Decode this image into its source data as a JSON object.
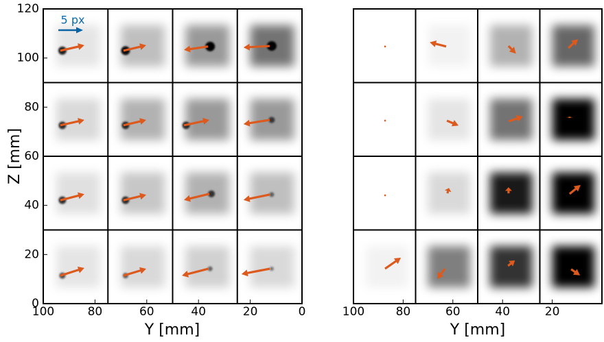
{
  "chart_data": [
    {
      "type": "quiver",
      "xlabel": "Y [mm]",
      "ylabel": "Z [mm]",
      "annotation": "5 px",
      "xlim": [
        100,
        0
      ],
      "ylim": [
        0,
        120
      ],
      "xticks": [
        100,
        80,
        60,
        40,
        20,
        0
      ],
      "yticks": [
        0,
        20,
        40,
        60,
        80,
        100,
        120
      ],
      "color": "#dc5a1e",
      "x": [
        93.4,
        69.0,
        36.3,
        12.5,
        93.4,
        69.0,
        45.6,
        12.5,
        93.4,
        69.0,
        35.8,
        12.5,
        93.4,
        69.0,
        36.3,
        12.5
      ],
      "y": [
        103.0,
        103.0,
        104.7,
        104.9,
        72.6,
        72.6,
        72.6,
        74.8,
        42.1,
        42.1,
        44.7,
        44.4,
        11.4,
        11.4,
        14.2,
        14.2
      ],
      "u": [
        -9.3,
        -8.8,
        9.3,
        10.1,
        -9.3,
        -8.8,
        -9.8,
        10.1,
        -9.3,
        -8.8,
        9.8,
        10.1,
        -9.3,
        -8.8,
        10.1,
        10.9
      ],
      "v": [
        2.2,
        2.2,
        -1.4,
        -0.6,
        2.2,
        2.2,
        2.2,
        -1.7,
        2.5,
        2.2,
        -2.5,
        -2.2,
        3.1,
        2.8,
        -2.8,
        -2.2
      ],
      "density": [
        [
          0.1,
          0.25,
          0.4,
          0.55
        ],
        [
          0.15,
          0.3,
          0.4,
          0.4
        ],
        [
          0.12,
          0.22,
          0.3,
          0.25
        ],
        [
          0.1,
          0.15,
          0.18,
          0.15
        ]
      ],
      "spots": [
        [
          0.8,
          0.9,
          1,
          1
        ],
        [
          0.7,
          0.7,
          0.7,
          0.5
        ],
        [
          0.7,
          0.7,
          0.6,
          0.3
        ],
        [
          0.5,
          0.4,
          0.3,
          0.2
        ]
      ]
    },
    {
      "type": "quiver",
      "xlabel": "Y [mm]",
      "xlim": [
        100,
        0
      ],
      "ylim": [
        0,
        120
      ],
      "xticks": [
        100,
        80,
        60,
        40,
        20
      ],
      "color": "#dc5a1e",
      "x": [
        87.3,
        62.7,
        37.6,
        13.5,
        87.3,
        62.4,
        37.6,
        13.0,
        87.3,
        62.2,
        37.6,
        13.0,
        87.3,
        63.3,
        37.8,
        12.4
      ],
      "y": [
        104.7,
        104.7,
        104.9,
        104.1,
        74.5,
        74.5,
        74.2,
        75.6,
        44.1,
        44.9,
        44.9,
        44.7,
        14.2,
        14.2,
        15.4,
        14.0
      ],
      "u": [
        0,
        6.6,
        -3.0,
        -3.9,
        0,
        -4.7,
        -5.8,
        0,
        0,
        -0.6,
        0,
        -4.4,
        -6.4,
        3.0,
        -2.8,
        -3.6
      ],
      "v": [
        0,
        1.7,
        -3.1,
        3.6,
        0,
        -2.0,
        2.0,
        0.5,
        0,
        2.2,
        2.5,
        3.6,
        4.5,
        -4.2,
        2.2,
        -2.5
      ],
      "density": [
        [
          0,
          0.05,
          0.3,
          0.6
        ],
        [
          0,
          0.1,
          0.55,
          1
        ],
        [
          0,
          0.15,
          0.9,
          1
        ],
        [
          0.05,
          0.5,
          0.8,
          1
        ]
      ]
    }
  ]
}
